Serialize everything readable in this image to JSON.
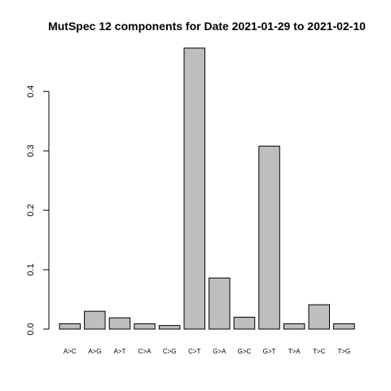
{
  "chart_data": {
    "type": "bar",
    "title": "MutSpec 12 components for Date 2021-01-29 to 2021-02-10",
    "xlabel": "",
    "ylabel": "",
    "categories": [
      "A>C",
      "A>G",
      "A>T",
      "C>A",
      "C>G",
      "C>T",
      "G>A",
      "G>C",
      "G>T",
      "T>A",
      "T>C",
      "T>G"
    ],
    "values": [
      0.009,
      0.03,
      0.019,
      0.009,
      0.006,
      0.473,
      0.086,
      0.02,
      0.308,
      0.009,
      0.041,
      0.009
    ],
    "ylim": [
      0,
      0.473
    ],
    "yticks": [
      0.0,
      0.1,
      0.2,
      0.3,
      0.4
    ],
    "ytick_labels": [
      "0.0",
      "0.1",
      "0.2",
      "0.3",
      "0.4"
    ],
    "grid": false,
    "legend": "none",
    "colors": {
      "bar_fill": "#bebebe",
      "bar_stroke": "#000000",
      "axis": "#000000",
      "background": "#ffffff"
    }
  }
}
